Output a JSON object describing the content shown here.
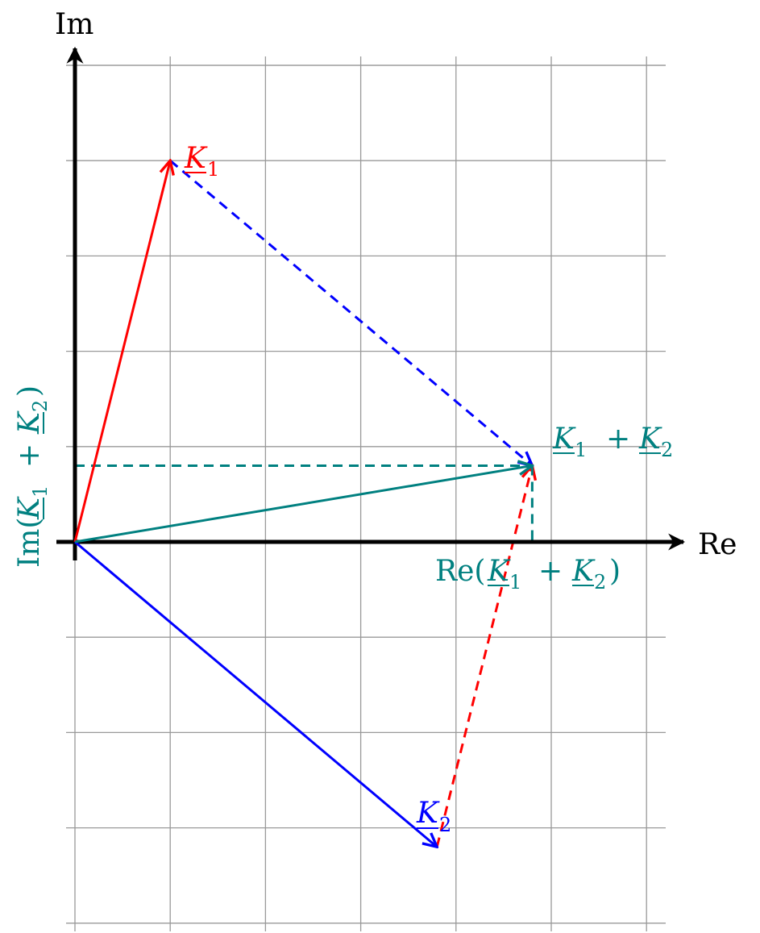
{
  "axes": {
    "x_label": "Re",
    "y_label": "Im"
  },
  "grid": {
    "visible": true,
    "x_range": [
      0,
      6
    ],
    "y_range": [
      -4,
      5
    ],
    "step": 1
  },
  "colors": {
    "k1": "#ff0000",
    "k2": "#0000ff",
    "sum": "#008080",
    "axis": "#000000",
    "grid": "#999999"
  },
  "vectors": {
    "k1": {
      "x": 1,
      "y": 4,
      "name": "K",
      "sub": "1"
    },
    "k2": {
      "x": 3.8,
      "y": -3.2,
      "name": "K",
      "sub": "2"
    },
    "sum": {
      "x": 4.8,
      "y": 0.8
    }
  },
  "labels": {
    "sum_text": "K1 + K2",
    "re_sum_text": "Re(K1 + K2)",
    "im_sum_text": "Im(K1 + K2)"
  }
}
